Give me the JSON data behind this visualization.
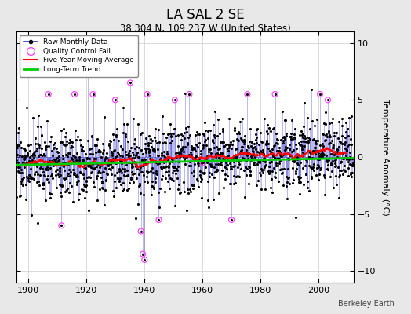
{
  "title": "LA SAL 2 SE",
  "subtitle": "38.304 N, 109.237 W (United States)",
  "ylabel": "Temperature Anomaly (°C)",
  "credit": "Berkeley Earth",
  "ylim": [
    -11,
    11
  ],
  "yticks": [
    -10,
    -5,
    0,
    5,
    10
  ],
  "xlim": [
    1896,
    2012
  ],
  "xticks": [
    1900,
    1920,
    1940,
    1960,
    1980,
    2000
  ],
  "bg_color": "#e8e8e8",
  "plot_bg_color": "#ffffff",
  "raw_line_color": "#3333cc",
  "raw_dot_color": "#000000",
  "qc_fail_color": "#ff44ff",
  "moving_avg_color": "#ff0000",
  "trend_color": "#00cc00",
  "seed": 17
}
